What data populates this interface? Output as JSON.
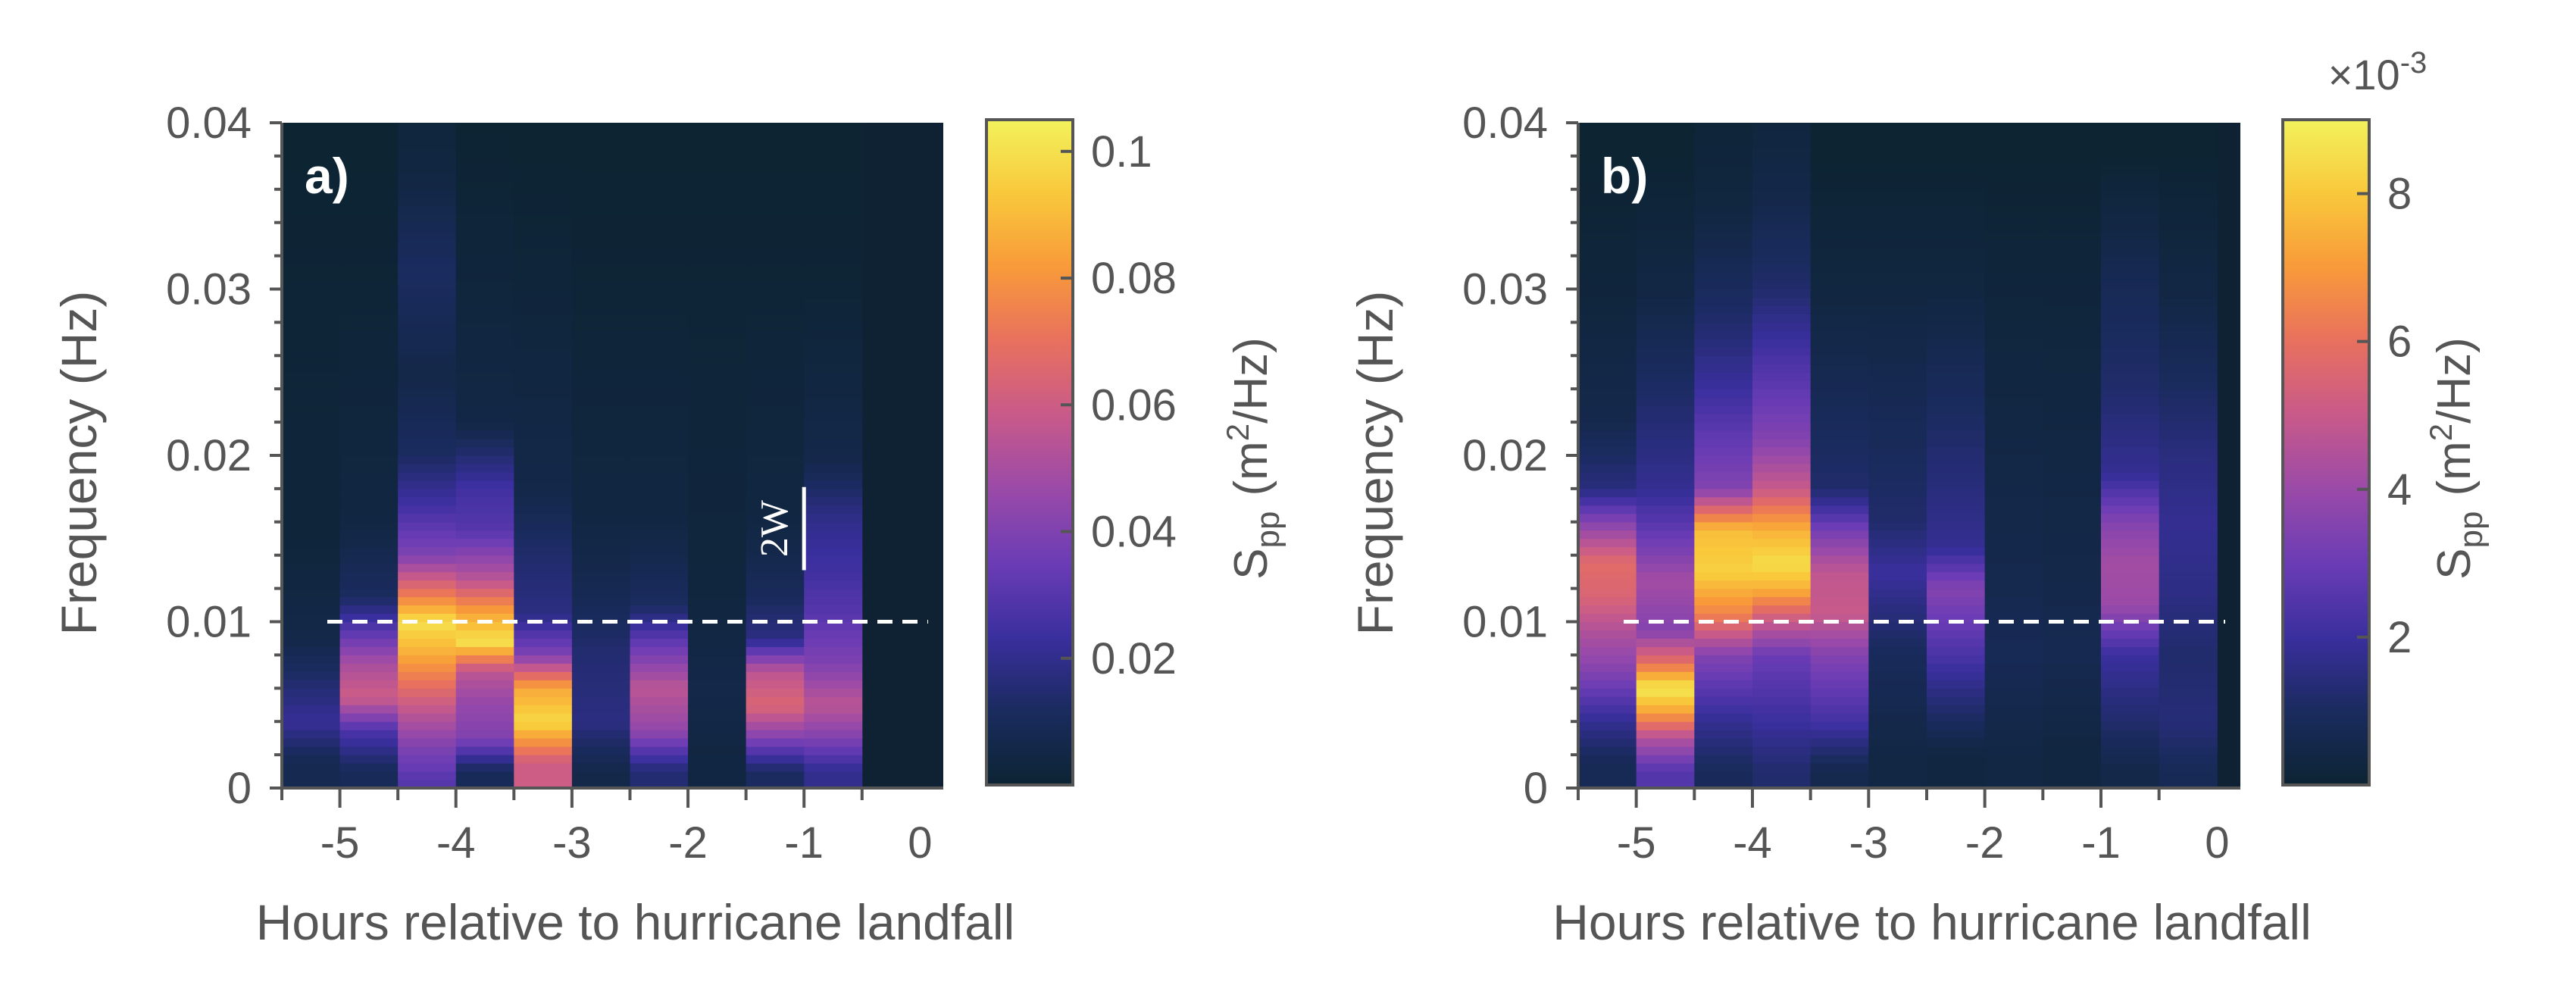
{
  "chart_data": [
    {
      "type": "heatmap",
      "panel_label": "a)",
      "xlabel": "Hours relative to hurricane landfall",
      "ylabel": "Frequency (Hz)",
      "xlim": [
        -5.5,
        0.2
      ],
      "ylim": [
        0,
        0.04
      ],
      "xticks": [
        "-5",
        "-4",
        "-3",
        "-2",
        "-1",
        "0"
      ],
      "yticks": [
        "0",
        "0.01",
        "0.02",
        "0.03",
        "0.04"
      ],
      "colorbar": {
        "label_main": "S",
        "label_sub": "pp",
        "units_pre": "(m",
        "units_sup": "2",
        "units_post": "/Hz)",
        "range": [
          0,
          0.105
        ],
        "ticks": [
          "0.02",
          "0.04",
          "0.06",
          "0.08",
          "0.1"
        ],
        "exponent": ""
      },
      "reference_line_freq": 0.01,
      "bandwidth_label": "2W",
      "bandwidth_freq_range": [
        0.0131,
        0.0181
      ],
      "time_bins": [
        -5.25,
        -4.75,
        -4.25,
        -3.75,
        -3.25,
        -2.75,
        -2.25,
        -1.75,
        -1.25,
        -0.75,
        -0.25
      ],
      "series": [
        {
          "time": -5.25,
          "bands": [
            {
              "f": 0.0015,
              "v": 0.008
            },
            {
              "f": 0.004,
              "v": 0.022
            },
            {
              "f": 0.0065,
              "v": 0.014
            },
            {
              "f": 0.009,
              "v": 0.006
            },
            {
              "f": 0.015,
              "v": 0.002
            },
            {
              "f": 0.03,
              "v": 0.001
            }
          ]
        },
        {
          "time": -4.75,
          "bands": [
            {
              "f": 0.001,
              "v": 0.01
            },
            {
              "f": 0.0035,
              "v": 0.028
            },
            {
              "f": 0.0055,
              "v": 0.06
            },
            {
              "f": 0.0075,
              "v": 0.05
            },
            {
              "f": 0.0095,
              "v": 0.03
            },
            {
              "f": 0.0115,
              "v": 0.012
            },
            {
              "f": 0.016,
              "v": 0.004
            },
            {
              "f": 0.03,
              "v": 0.001
            }
          ]
        },
        {
          "time": -4.25,
          "bands": [
            {
              "f": 0.0005,
              "v": 0.03
            },
            {
              "f": 0.0025,
              "v": 0.04
            },
            {
              "f": 0.0045,
              "v": 0.055
            },
            {
              "f": 0.0065,
              "v": 0.072
            },
            {
              "f": 0.0085,
              "v": 0.09
            },
            {
              "f": 0.01,
              "v": 0.1
            },
            {
              "f": 0.0115,
              "v": 0.075
            },
            {
              "f": 0.014,
              "v": 0.04
            },
            {
              "f": 0.017,
              "v": 0.025
            },
            {
              "f": 0.02,
              "v": 0.012
            },
            {
              "f": 0.025,
              "v": 0.006
            },
            {
              "f": 0.031,
              "v": 0.012
            },
            {
              "f": 0.037,
              "v": 0.004
            }
          ]
        },
        {
          "time": -3.75,
          "bands": [
            {
              "f": 0.001,
              "v": 0.01
            },
            {
              "f": 0.003,
              "v": 0.04
            },
            {
              "f": 0.005,
              "v": 0.045
            },
            {
              "f": 0.007,
              "v": 0.055
            },
            {
              "f": 0.0088,
              "v": 0.1
            },
            {
              "f": 0.0105,
              "v": 0.085
            },
            {
              "f": 0.0125,
              "v": 0.055
            },
            {
              "f": 0.0155,
              "v": 0.03
            },
            {
              "f": 0.018,
              "v": 0.025
            },
            {
              "f": 0.022,
              "v": 0.005
            },
            {
              "f": 0.032,
              "v": 0.002
            }
          ]
        },
        {
          "time": -3.25,
          "bands": [
            {
              "f": 0.0015,
              "v": 0.06
            },
            {
              "f": 0.004,
              "v": 0.098
            },
            {
              "f": 0.006,
              "v": 0.085
            },
            {
              "f": 0.008,
              "v": 0.04
            },
            {
              "f": 0.0105,
              "v": 0.018
            },
            {
              "f": 0.014,
              "v": 0.014
            },
            {
              "f": 0.018,
              "v": 0.006
            },
            {
              "f": 0.03,
              "v": 0.002
            }
          ]
        },
        {
          "time": -2.75,
          "bands": [
            {
              "f": 0.001,
              "v": 0.006
            },
            {
              "f": 0.004,
              "v": 0.018
            },
            {
              "f": 0.008,
              "v": 0.015
            },
            {
              "f": 0.012,
              "v": 0.008
            },
            {
              "f": 0.016,
              "v": 0.004
            },
            {
              "f": 0.03,
              "v": 0.001
            }
          ]
        },
        {
          "time": -2.25,
          "bands": [
            {
              "f": 0.001,
              "v": 0.015
            },
            {
              "f": 0.0035,
              "v": 0.045
            },
            {
              "f": 0.006,
              "v": 0.055
            },
            {
              "f": 0.0085,
              "v": 0.035
            },
            {
              "f": 0.011,
              "v": 0.012
            },
            {
              "f": 0.016,
              "v": 0.004
            },
            {
              "f": 0.03,
              "v": 0.001
            }
          ]
        },
        {
          "time": -1.75,
          "bands": [
            {
              "f": 0.002,
              "v": 0.004
            },
            {
              "f": 0.006,
              "v": 0.006
            },
            {
              "f": 0.012,
              "v": 0.003
            },
            {
              "f": 0.03,
              "v": 0.001
            }
          ]
        },
        {
          "time": -1.25,
          "bands": [
            {
              "f": 0.001,
              "v": 0.012
            },
            {
              "f": 0.003,
              "v": 0.04
            },
            {
              "f": 0.005,
              "v": 0.065
            },
            {
              "f": 0.007,
              "v": 0.055
            },
            {
              "f": 0.009,
              "v": 0.018
            },
            {
              "f": 0.012,
              "v": 0.01
            },
            {
              "f": 0.016,
              "v": 0.004
            },
            {
              "f": 0.03,
              "v": 0.001
            }
          ]
        },
        {
          "time": -0.75,
          "bands": [
            {
              "f": 0.001,
              "v": 0.02
            },
            {
              "f": 0.003,
              "v": 0.04
            },
            {
              "f": 0.005,
              "v": 0.055
            },
            {
              "f": 0.0075,
              "v": 0.04
            },
            {
              "f": 0.0105,
              "v": 0.03
            },
            {
              "f": 0.013,
              "v": 0.025
            },
            {
              "f": 0.016,
              "v": 0.02
            },
            {
              "f": 0.02,
              "v": 0.006
            },
            {
              "f": 0.03,
              "v": 0.001
            }
          ]
        }
      ]
    },
    {
      "type": "heatmap",
      "panel_label": "b)",
      "xlabel": "Hours relative to hurricane landfall",
      "ylabel": "Frequency (Hz)",
      "xlim": [
        -5.5,
        0.2
      ],
      "ylim": [
        0,
        0.04
      ],
      "xticks": [
        "-5",
        "-4",
        "-3",
        "-2",
        "-1",
        "0"
      ],
      "yticks": [
        "0",
        "0.01",
        "0.02",
        "0.03",
        "0.04"
      ],
      "colorbar": {
        "label_main": "S",
        "label_sub": "pp",
        "units_pre": "(m",
        "units_sup": "2",
        "units_post": "/Hz)",
        "range": [
          0,
          0.009
        ],
        "ticks": [
          "2",
          "4",
          "6",
          "8"
        ],
        "exponent_prefix": "×10",
        "exponent_power": "-3"
      },
      "reference_line_freq": 0.01,
      "series": [
        {
          "time": -5.25,
          "bands": [
            {
              "f": 0.0015,
              "v": 0.0008
            },
            {
              "f": 0.004,
              "v": 0.0018
            },
            {
              "f": 0.007,
              "v": 0.0035
            },
            {
              "f": 0.0095,
              "v": 0.0045
            },
            {
              "f": 0.0115,
              "v": 0.0055
            },
            {
              "f": 0.0135,
              "v": 0.0058
            },
            {
              "f": 0.0155,
              "v": 0.004
            },
            {
              "f": 0.018,
              "v": 0.0015
            },
            {
              "f": 0.022,
              "v": 0.0006
            },
            {
              "f": 0.03,
              "v": 0.0002
            }
          ]
        },
        {
          "time": -4.75,
          "bands": [
            {
              "f": 0.001,
              "v": 0.0025
            },
            {
              "f": 0.003,
              "v": 0.0045
            },
            {
              "f": 0.0048,
              "v": 0.0075
            },
            {
              "f": 0.006,
              "v": 0.0088
            },
            {
              "f": 0.0075,
              "v": 0.006
            },
            {
              "f": 0.0095,
              "v": 0.0035
            },
            {
              "f": 0.0125,
              "v": 0.0042
            },
            {
              "f": 0.015,
              "v": 0.003
            },
            {
              "f": 0.018,
              "v": 0.0018
            },
            {
              "f": 0.03,
              "v": 0.0004
            }
          ]
        },
        {
          "time": -4.25,
          "bands": [
            {
              "f": 0.001,
              "v": 0.0009
            },
            {
              "f": 0.004,
              "v": 0.0018
            },
            {
              "f": 0.008,
              "v": 0.0035
            },
            {
              "f": 0.0105,
              "v": 0.0065
            },
            {
              "f": 0.013,
              "v": 0.0082
            },
            {
              "f": 0.0155,
              "v": 0.0078
            },
            {
              "f": 0.018,
              "v": 0.0035
            },
            {
              "f": 0.021,
              "v": 0.0028
            },
            {
              "f": 0.024,
              "v": 0.002
            },
            {
              "f": 0.028,
              "v": 0.0012
            },
            {
              "f": 0.035,
              "v": 0.0003
            }
          ]
        },
        {
          "time": -3.75,
          "bands": [
            {
              "f": 0.001,
              "v": 0.0012
            },
            {
              "f": 0.004,
              "v": 0.002
            },
            {
              "f": 0.008,
              "v": 0.003
            },
            {
              "f": 0.0105,
              "v": 0.0055
            },
            {
              "f": 0.012,
              "v": 0.0075
            },
            {
              "f": 0.0135,
              "v": 0.0085
            },
            {
              "f": 0.0155,
              "v": 0.0075
            },
            {
              "f": 0.018,
              "v": 0.005
            },
            {
              "f": 0.021,
              "v": 0.0035
            },
            {
              "f": 0.025,
              "v": 0.0025
            },
            {
              "f": 0.03,
              "v": 0.0012
            },
            {
              "f": 0.036,
              "v": 0.0005
            }
          ]
        },
        {
          "time": -3.25,
          "bands": [
            {
              "f": 0.001,
              "v": 0.0006
            },
            {
              "f": 0.004,
              "v": 0.0022
            },
            {
              "f": 0.008,
              "v": 0.0035
            },
            {
              "f": 0.0105,
              "v": 0.005
            },
            {
              "f": 0.013,
              "v": 0.0048
            },
            {
              "f": 0.0155,
              "v": 0.0032
            },
            {
              "f": 0.018,
              "v": 0.0012
            },
            {
              "f": 0.03,
              "v": 0.0003
            }
          ]
        },
        {
          "time": -2.75,
          "bands": [
            {
              "f": 0.002,
              "v": 0.0004
            },
            {
              "f": 0.008,
              "v": 0.0009
            },
            {
              "f": 0.013,
              "v": 0.002
            },
            {
              "f": 0.016,
              "v": 0.0012
            },
            {
              "f": 0.03,
              "v": 0.0003
            }
          ]
        },
        {
          "time": -2.25,
          "bands": [
            {
              "f": 0.002,
              "v": 0.0003
            },
            {
              "f": 0.0095,
              "v": 0.0028
            },
            {
              "f": 0.012,
              "v": 0.0035
            },
            {
              "f": 0.0145,
              "v": 0.0018
            },
            {
              "f": 0.03,
              "v": 0.0003
            }
          ]
        },
        {
          "time": -1.75,
          "bands": [
            {
              "f": 0.002,
              "v": 0.0004
            },
            {
              "f": 0.008,
              "v": 0.0008
            },
            {
              "f": 0.013,
              "v": 0.0006
            },
            {
              "f": 0.03,
              "v": 0.0002
            }
          ]
        },
        {
          "time": -1.25,
          "bands": [
            {
              "f": 0.002,
              "v": 0.0003
            },
            {
              "f": 0.008,
              "v": 0.0007
            },
            {
              "f": 0.014,
              "v": 0.0005
            },
            {
              "f": 0.03,
              "v": 0.0002
            }
          ]
        },
        {
          "time": -0.75,
          "bands": [
            {
              "f": 0.001,
              "v": 0.0005
            },
            {
              "f": 0.004,
              "v": 0.0012
            },
            {
              "f": 0.008,
              "v": 0.002
            },
            {
              "f": 0.011,
              "v": 0.004
            },
            {
              "f": 0.0135,
              "v": 0.0042
            },
            {
              "f": 0.016,
              "v": 0.0035
            },
            {
              "f": 0.019,
              "v": 0.0018
            },
            {
              "f": 0.024,
              "v": 0.0012
            },
            {
              "f": 0.03,
              "v": 0.0008
            }
          ]
        },
        {
          "time": -0.25,
          "bands": [
            {
              "f": 0.001,
              "v": 0.0008
            },
            {
              "f": 0.004,
              "v": 0.0014
            },
            {
              "f": 0.008,
              "v": 0.0012
            },
            {
              "f": 0.012,
              "v": 0.0016
            },
            {
              "f": 0.016,
              "v": 0.0018
            },
            {
              "f": 0.02,
              "v": 0.0015
            },
            {
              "f": 0.025,
              "v": 0.0009
            },
            {
              "f": 0.03,
              "v": 0.0004
            }
          ]
        }
      ]
    }
  ],
  "colors": {
    "axis_text": "#555555",
    "background_cell": "#0f2233",
    "reference_line": "#ffffff",
    "colormap": [
      "#0d2433",
      "#1a2b5e",
      "#3a2f9e",
      "#6b3cb5",
      "#9a4aa8",
      "#c85a8a",
      "#e8705e",
      "#f89a3a",
      "#f9c83b",
      "#f2f25c"
    ]
  }
}
